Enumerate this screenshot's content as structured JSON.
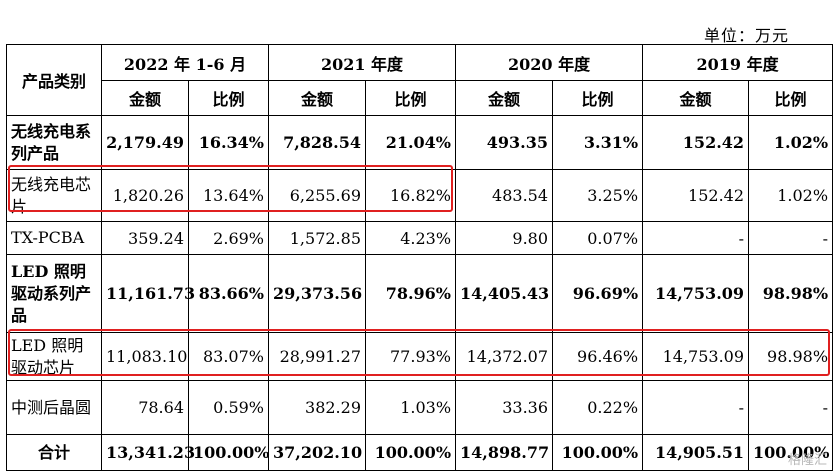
{
  "unit": "单位：万元",
  "header": {
    "category": "产品类别",
    "periods": [
      "2022 年 1-6 月",
      "2021 年度",
      "2020 年度",
      "2019 年度"
    ],
    "amount": "金额",
    "ratio": "比例"
  },
  "rows": [
    {
      "label": "无线充电系列产品",
      "bold": true,
      "values": [
        "2,179.49",
        "16.34%",
        "7,828.54",
        "21.04%",
        "493.35",
        "3.31%",
        "152.42",
        "1.02%"
      ]
    },
    {
      "label": "无线充电芯片",
      "bold": false,
      "values": [
        "1,820.26",
        "13.64%",
        "6,255.69",
        "16.82%",
        "483.54",
        "3.25%",
        "152.42",
        "1.02%"
      ]
    },
    {
      "label": "TX-PCBA",
      "bold": false,
      "values": [
        "359.24",
        "2.69%",
        "1,572.85",
        "4.23%",
        "9.80",
        "0.07%",
        "-",
        "-"
      ]
    },
    {
      "label": "LED 照明驱动系列产品",
      "bold": true,
      "values": [
        "11,161.73",
        "83.66%",
        "29,373.56",
        "78.96%",
        "14,405.43",
        "96.69%",
        "14,753.09",
        "98.98%"
      ]
    },
    {
      "label": "LED 照明驱动芯片",
      "bold": false,
      "values": [
        "11,083.10",
        "83.07%",
        "28,991.27",
        "77.93%",
        "14,372.07",
        "96.46%",
        "14,753.09",
        "98.98%"
      ]
    },
    {
      "label": "中测后晶圆",
      "bold": false,
      "values": [
        "78.64",
        "0.59%",
        "382.29",
        "1.03%",
        "33.36",
        "0.22%",
        "-",
        "-"
      ]
    }
  ],
  "total": {
    "label": "合计",
    "values": [
      "13,341.23",
      "100.00%",
      "37,202.10",
      "100.00%",
      "14,898.77",
      "100.00%",
      "14,905.51",
      "100.00%"
    ]
  },
  "watermark": "格隆汇",
  "highlight_color": "#e02020"
}
